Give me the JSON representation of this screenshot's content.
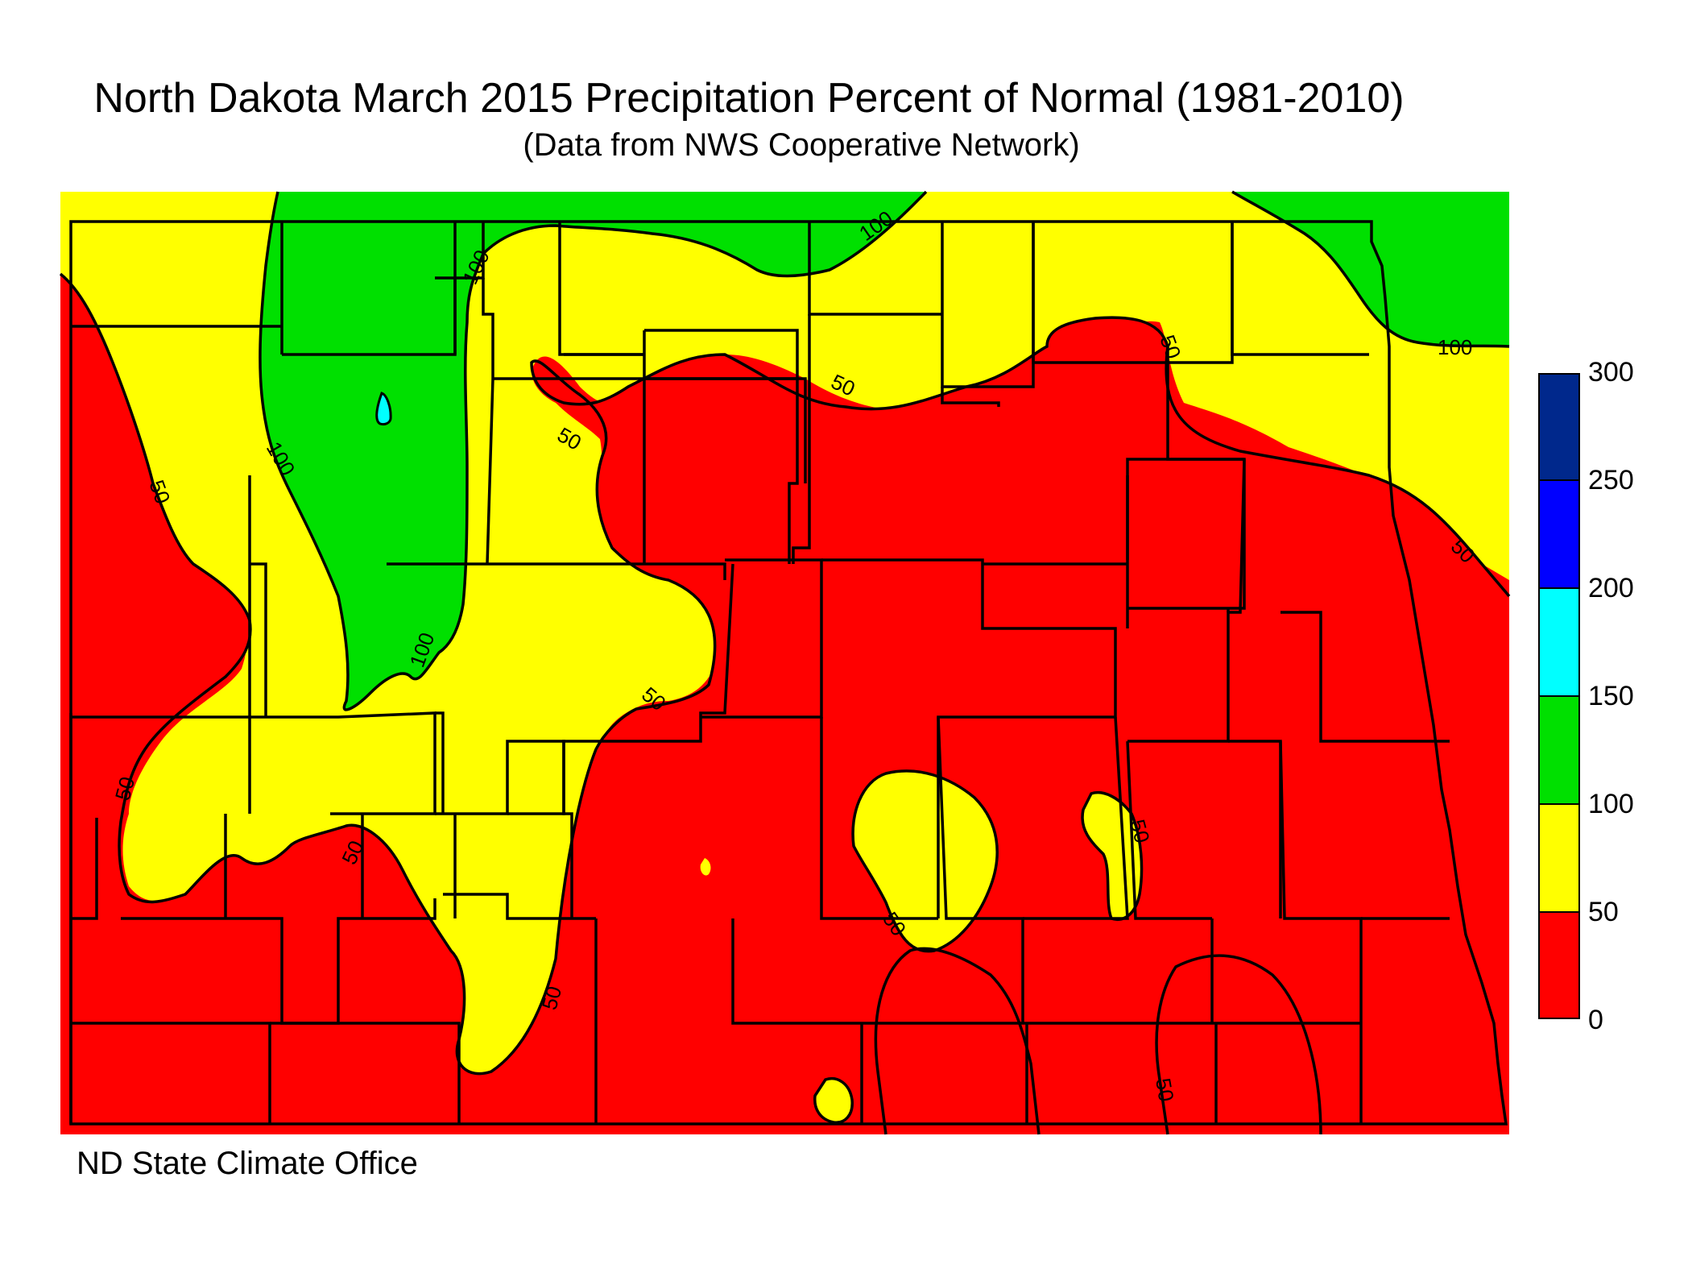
{
  "title": "North Dakota March 2015 Precipitation Percent of Normal (1981-2010)",
  "subtitle": "(Data from NWS Cooperative Network)",
  "credit": "ND State Climate Office",
  "contour_labels": {
    "c50": "50",
    "c100": "100"
  },
  "legend": {
    "ticks": [
      "0",
      "50",
      "100",
      "150",
      "200",
      "250",
      "300"
    ],
    "bins": [
      {
        "range": "0-50",
        "color": "#ff0000"
      },
      {
        "range": "50-100",
        "color": "#ffff00"
      },
      {
        "range": "100-150",
        "color": "#00e000"
      },
      {
        "range": "150-200",
        "color": "#00ffff"
      },
      {
        "range": "200-250",
        "color": "#0000ff"
      },
      {
        "range": "250-300",
        "color": "#00288c"
      }
    ]
  },
  "colors": {
    "red": "#ff0000",
    "yellow": "#ffff00",
    "green": "#00e000",
    "cyan": "#00ffff",
    "blue": "#0000ff",
    "navy": "#00288c"
  }
}
